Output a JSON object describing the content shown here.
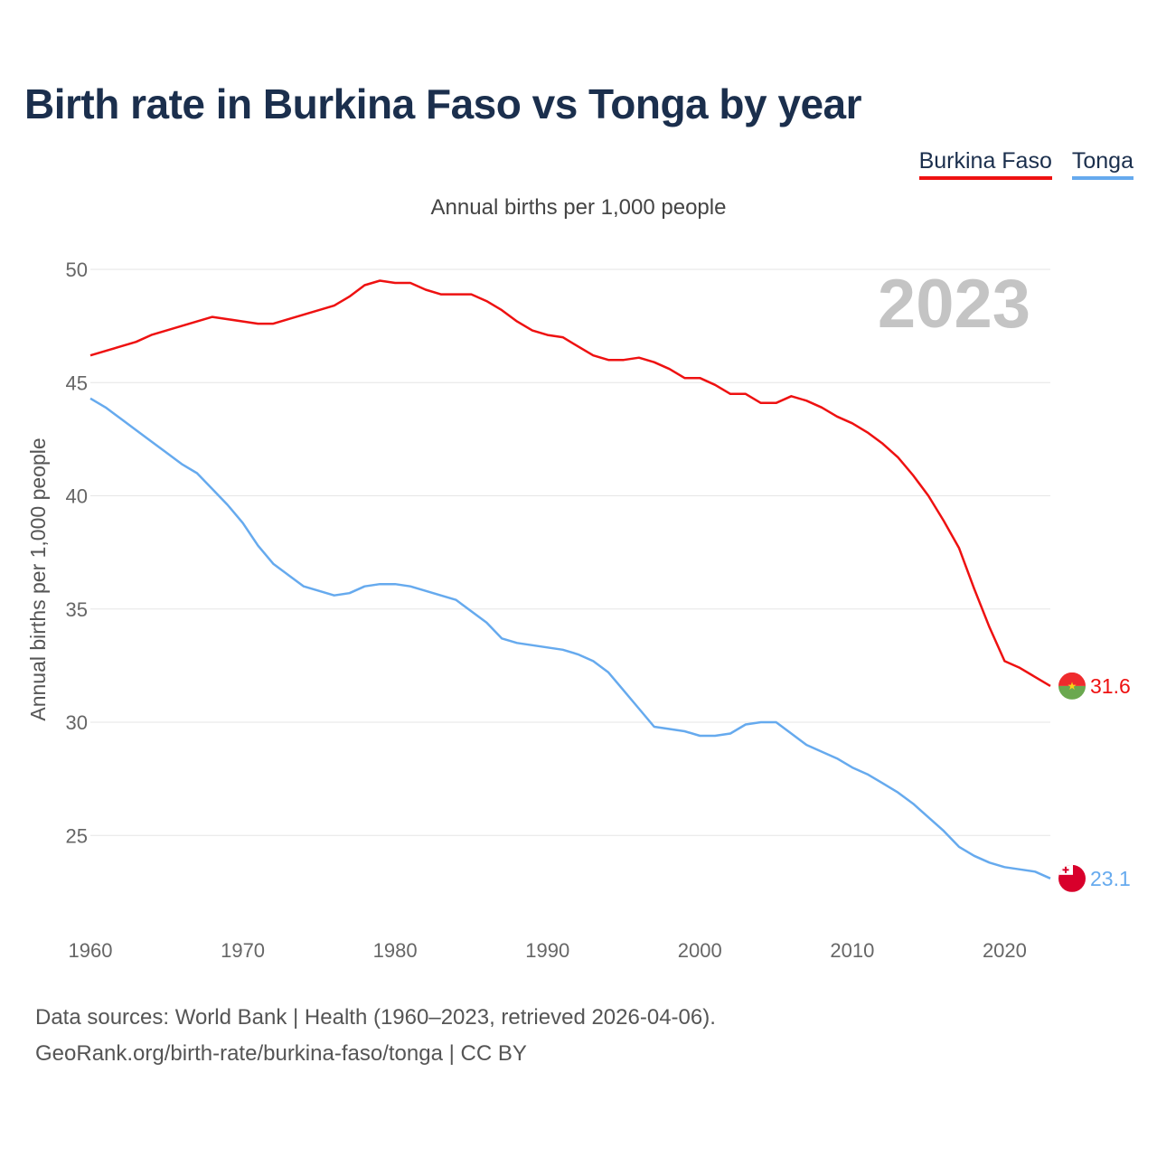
{
  "title": "Birth rate in Burkina Faso vs Tonga by year",
  "subtitle": "Annual births per 1,000 people",
  "footer": {
    "line1": "Data sources: World Bank | Health (1960–2023, retrieved 2026-04-06).",
    "line2": "GeoRank.org/birth-rate/burkina-faso/tonga | CC BY"
  },
  "current_year": "2023",
  "chart_data": {
    "type": "line",
    "title": "Birth rate in Burkina Faso vs Tonga by year",
    "subtitle": "Annual births per 1,000 people",
    "ylabel": "Annual births per 1,000 people",
    "xlim": [
      1960,
      2023
    ],
    "ylim": [
      21,
      50
    ],
    "y_ticks": [
      25,
      30,
      35,
      40,
      45,
      50
    ],
    "x_ticks": [
      1960,
      1970,
      1980,
      1990,
      2000,
      2010,
      2020
    ],
    "grid": true,
    "legend": "top-right",
    "x": [
      1960,
      1961,
      1962,
      1963,
      1964,
      1965,
      1966,
      1967,
      1968,
      1969,
      1970,
      1971,
      1972,
      1973,
      1974,
      1975,
      1976,
      1977,
      1978,
      1979,
      1980,
      1981,
      1982,
      1983,
      1984,
      1985,
      1986,
      1987,
      1988,
      1989,
      1990,
      1991,
      1992,
      1993,
      1994,
      1995,
      1996,
      1997,
      1998,
      1999,
      2000,
      2001,
      2002,
      2003,
      2004,
      2005,
      2006,
      2007,
      2008,
      2009,
      2010,
      2011,
      2012,
      2013,
      2014,
      2015,
      2016,
      2017,
      2018,
      2019,
      2020,
      2021,
      2022,
      2023
    ],
    "series": [
      {
        "name": "Burkina Faso",
        "color": "#ee1111",
        "end_label": "31.6",
        "values": [
          46.2,
          46.4,
          46.6,
          46.8,
          47.1,
          47.3,
          47.5,
          47.7,
          47.9,
          47.8,
          47.7,
          47.6,
          47.6,
          47.8,
          48.0,
          48.2,
          48.4,
          48.8,
          49.3,
          49.5,
          49.4,
          49.4,
          49.1,
          48.9,
          48.9,
          48.9,
          48.6,
          48.2,
          47.7,
          47.3,
          47.1,
          47.0,
          46.6,
          46.2,
          46.0,
          46.0,
          46.1,
          45.9,
          45.6,
          45.2,
          45.2,
          44.9,
          44.5,
          44.5,
          44.1,
          44.1,
          44.4,
          44.2,
          43.9,
          43.5,
          43.2,
          42.8,
          42.3,
          41.7,
          40.9,
          40.0,
          38.9,
          37.7,
          35.9,
          34.2,
          32.7,
          32.4,
          32.0,
          31.6
        ]
      },
      {
        "name": "Tonga",
        "color": "#66aaee",
        "end_label": "23.1",
        "values": [
          44.3,
          43.9,
          43.4,
          42.9,
          42.4,
          41.9,
          41.4,
          41.0,
          40.3,
          39.6,
          38.8,
          37.8,
          37.0,
          36.5,
          36.0,
          35.8,
          35.6,
          35.7,
          36.0,
          36.1,
          36.1,
          36.0,
          35.8,
          35.6,
          35.4,
          34.9,
          34.4,
          33.7,
          33.5,
          33.4,
          33.3,
          33.2,
          33.0,
          32.7,
          32.2,
          31.4,
          30.6,
          29.8,
          29.7,
          29.6,
          29.4,
          29.4,
          29.5,
          29.9,
          30.0,
          30.0,
          29.5,
          29.0,
          28.7,
          28.4,
          28.0,
          27.7,
          27.3,
          26.9,
          26.4,
          25.8,
          25.2,
          24.5,
          24.1,
          23.8,
          23.6,
          23.5,
          23.4,
          23.1
        ]
      }
    ]
  }
}
